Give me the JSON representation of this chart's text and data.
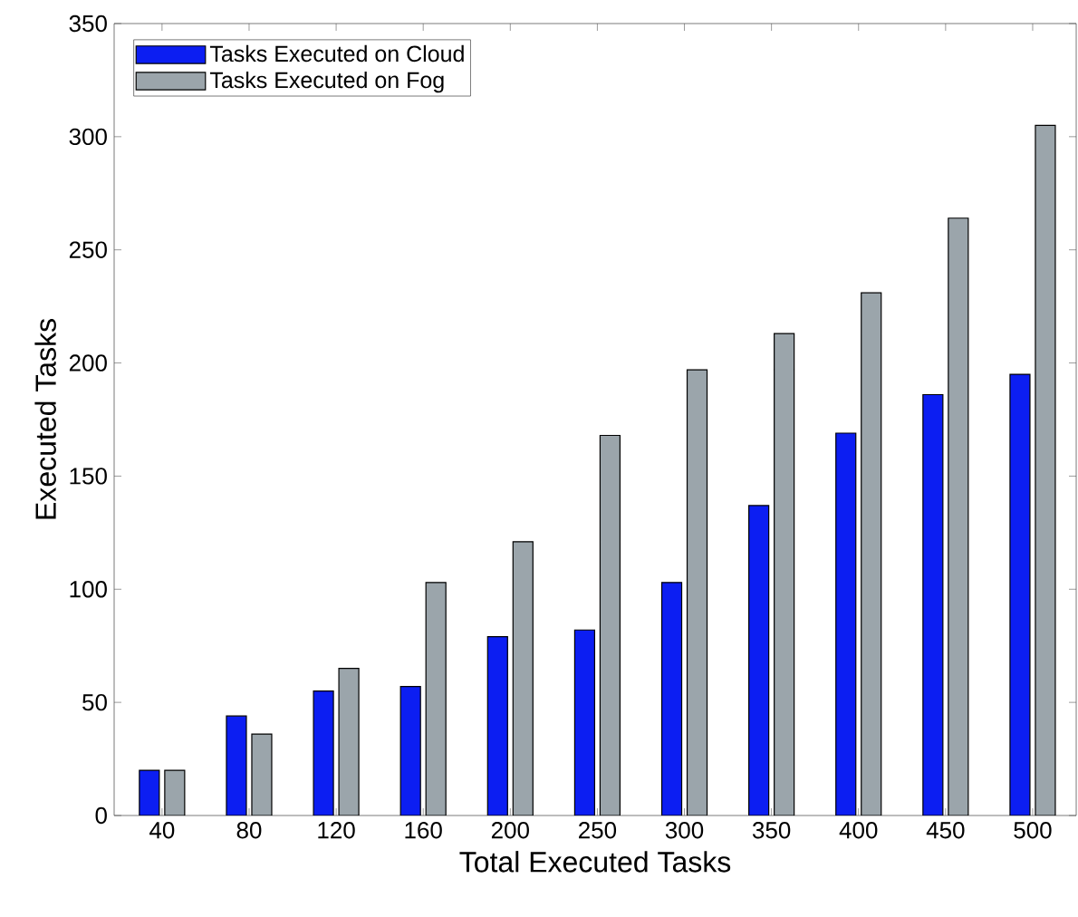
{
  "chart_data": {
    "type": "bar",
    "xlabel": "Total Executed Tasks",
    "ylabel": "Executed Tasks",
    "categories": [
      "40",
      "80",
      "120",
      "160",
      "200",
      "250",
      "300",
      "350",
      "400",
      "450",
      "500"
    ],
    "series": [
      {
        "name": "Tasks Executed on Cloud",
        "color": "#0c1ef2",
        "values": [
          20,
          44,
          55,
          57,
          79,
          82,
          103,
          137,
          169,
          186,
          195
        ]
      },
      {
        "name": "Tasks Executed on Fog",
        "color": "#9ba5ab",
        "values": [
          20,
          36,
          65,
          103,
          121,
          168,
          197,
          213,
          231,
          264,
          305
        ]
      }
    ],
    "ylim": [
      0,
      350
    ],
    "yticks": [
      0,
      50,
      100,
      150,
      200,
      250,
      300,
      350
    ],
    "legend": "top left",
    "grid": false
  }
}
